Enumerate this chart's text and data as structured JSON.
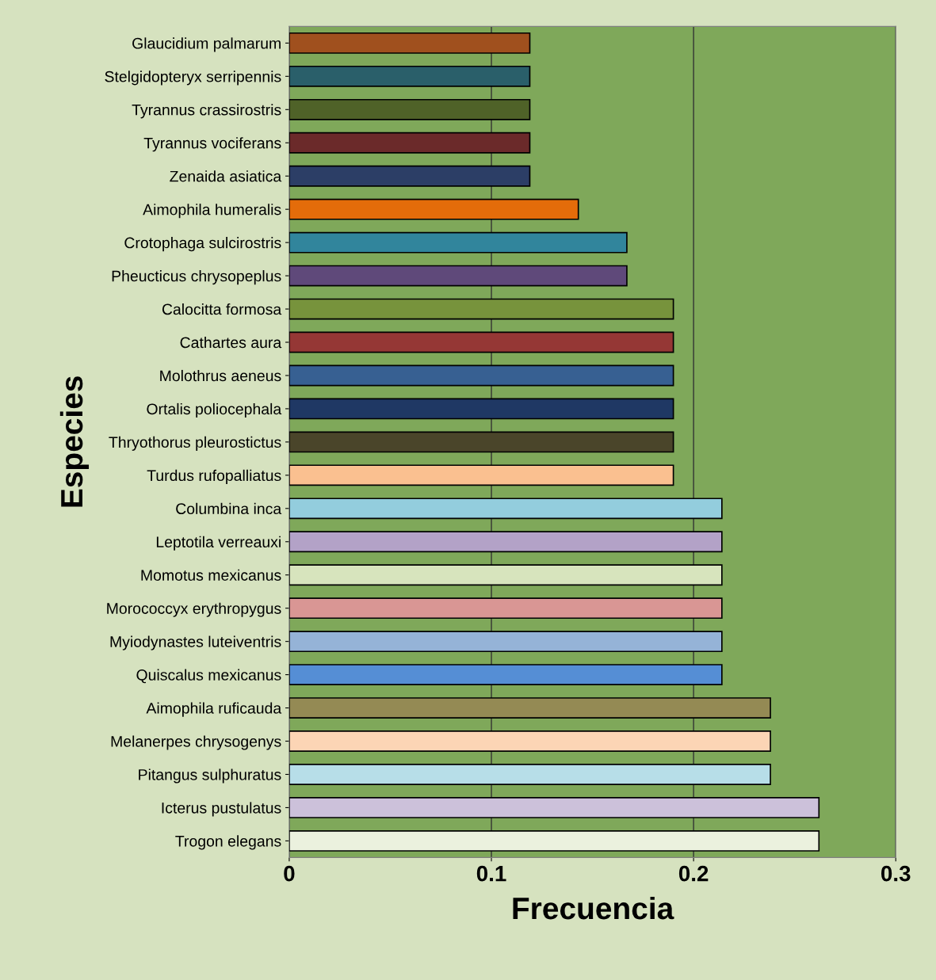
{
  "chart_data": {
    "type": "bar",
    "orientation": "horizontal",
    "xlabel": "Frecuencia",
    "ylabel": "Especies",
    "categories": [
      "Glaucidium palmarum",
      "Stelgidopteryx serripennis",
      "Tyrannus crassirostris",
      "Tyrannus vociferans",
      "Zenaida asiatica",
      "Aimophila humeralis",
      "Crotophaga sulcirostris",
      "Pheucticus chrysopeplus",
      "Calocitta formosa",
      "Cathartes aura",
      "Molothrus aeneus",
      "Ortalis poliocephala",
      "Thryothorus pleurostictus",
      "Turdus rufopalliatus",
      "Columbina inca",
      "Leptotila verreauxi",
      "Momotus mexicanus",
      "Morococcyx erythropygus",
      "Myiodynastes luteiventris",
      "Quiscalus mexicanus",
      "Aimophila ruficauda",
      "Melanerpes chrysogenys",
      "Pitangus sulphuratus",
      "Icterus pustulatus",
      "Trogon elegans"
    ],
    "values": [
      0.119,
      0.119,
      0.119,
      0.119,
      0.119,
      0.143,
      0.167,
      0.167,
      0.19,
      0.19,
      0.19,
      0.19,
      0.19,
      0.19,
      0.214,
      0.214,
      0.214,
      0.214,
      0.214,
      0.214,
      0.238,
      0.238,
      0.238,
      0.262,
      0.262
    ],
    "colors": [
      "#a0501e",
      "#2a5f6a",
      "#4f6228",
      "#6b2a2a",
      "#2c3e66",
      "#e46c0a",
      "#31859c",
      "#5f497a",
      "#77933c",
      "#953735",
      "#376092",
      "#1f3864",
      "#4a452a",
      "#fac090",
      "#93cddd",
      "#b3a2c7",
      "#d7e4bd",
      "#d99694",
      "#95b3d7",
      "#558ed5",
      "#948a54",
      "#fcd5b5",
      "#b7dee8",
      "#ccc1da",
      "#ebf1de"
    ],
    "xlim": [
      0,
      0.3
    ],
    "xticks": [
      0,
      0.1,
      0.2,
      0.3
    ],
    "grid": "x"
  }
}
